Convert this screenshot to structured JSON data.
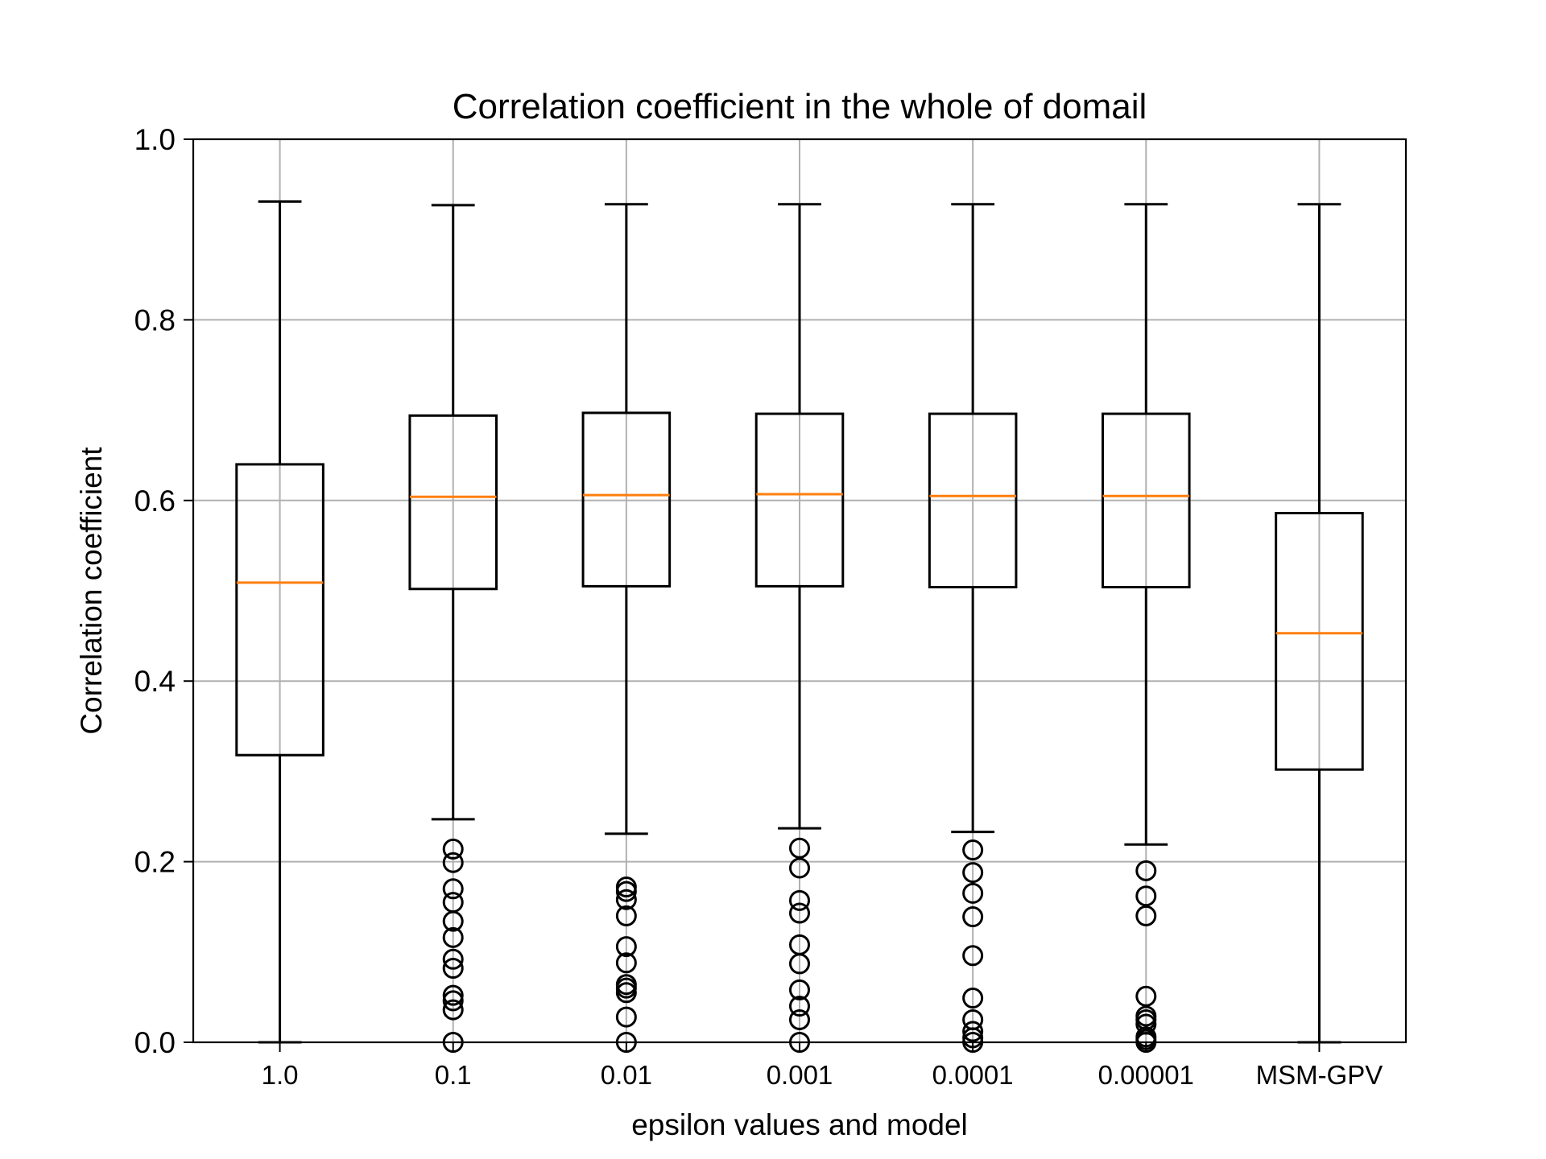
{
  "chart_data": {
    "type": "box",
    "title": "Correlation coefficient in the whole of domail",
    "xlabel": "epsilon values and model",
    "ylabel": "Correlation coefficient",
    "ylim": [
      0.0,
      1.0
    ],
    "yticks": [
      "0.0",
      "0.2",
      "0.4",
      "0.6",
      "0.8",
      "1.0"
    ],
    "grid": true,
    "colors": {
      "box": "#000000",
      "median": "#ff7f0e",
      "grid": "#b0b0b0"
    },
    "categories": [
      "1.0",
      "0.1",
      "0.01",
      "0.001",
      "0.0001",
      "0.00001",
      "MSM-GPV"
    ],
    "boxes": [
      {
        "label": "1.0",
        "whisker_low": 0.0,
        "q1": 0.318,
        "median": 0.509,
        "q3": 0.64,
        "whisker_high": 0.931,
        "outliers": []
      },
      {
        "label": "0.1",
        "whisker_low": 0.247,
        "q1": 0.502,
        "median": 0.604,
        "q3": 0.694,
        "whisker_high": 0.927,
        "outliers": [
          0.214,
          0.199,
          0.17,
          0.155,
          0.134,
          0.116,
          0.092,
          0.082,
          0.052,
          0.046,
          0.036,
          0.0
        ]
      },
      {
        "label": "0.01",
        "whisker_low": 0.231,
        "q1": 0.505,
        "median": 0.606,
        "q3": 0.697,
        "whisker_high": 0.928,
        "outliers": [
          0.172,
          0.167,
          0.158,
          0.14,
          0.106,
          0.088,
          0.064,
          0.06,
          0.055,
          0.028,
          0.0
        ]
      },
      {
        "label": "0.001",
        "whisker_low": 0.237,
        "q1": 0.505,
        "median": 0.607,
        "q3": 0.696,
        "whisker_high": 0.928,
        "outliers": [
          0.215,
          0.193,
          0.157,
          0.143,
          0.108,
          0.087,
          0.058,
          0.04,
          0.025,
          0.0
        ]
      },
      {
        "label": "0.0001",
        "whisker_low": 0.233,
        "q1": 0.504,
        "median": 0.605,
        "q3": 0.696,
        "whisker_high": 0.928,
        "outliers": [
          0.213,
          0.188,
          0.165,
          0.139,
          0.096,
          0.049,
          0.025,
          0.012,
          0.005,
          0.0
        ]
      },
      {
        "label": "0.00001",
        "whisker_low": 0.219,
        "q1": 0.504,
        "median": 0.605,
        "q3": 0.696,
        "whisker_high": 0.928,
        "outliers": [
          0.19,
          0.162,
          0.14,
          0.051,
          0.029,
          0.025,
          0.02,
          0.006,
          0.003,
          0.0
        ]
      },
      {
        "label": "MSM-GPV",
        "whisker_low": 0.0,
        "q1": 0.302,
        "median": 0.453,
        "q3": 0.586,
        "whisker_high": 0.928,
        "outliers": []
      }
    ]
  }
}
